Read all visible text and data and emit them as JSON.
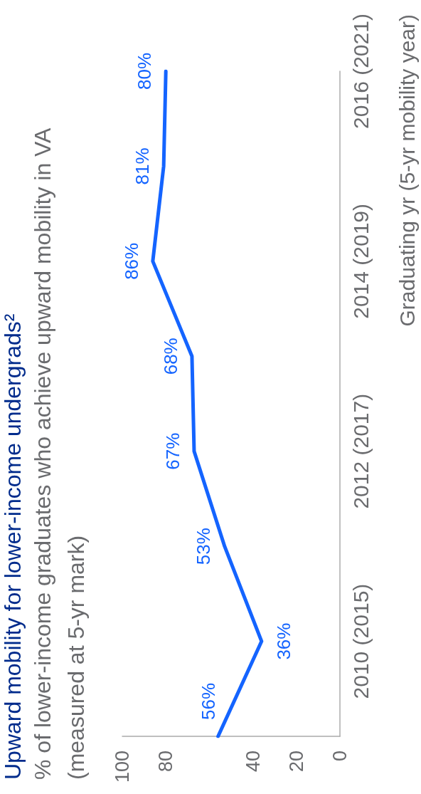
{
  "chart_data": {
    "type": "line",
    "orientation": "horizontal",
    "title": "Upward mobility for lower-income undergrads²",
    "subtitle": "% of lower-income graduates who achieve upward mobility in VA (measured at 5-yr mark)",
    "ylabel": "Graduating yr (5-yr mobility year)",
    "categories": [
      "2016 (2021)",
      null,
      "2014 (2019)",
      null,
      "2012 (2017)",
      null,
      "2010 (2015)",
      null
    ],
    "values": [
      80,
      81,
      86,
      68,
      67,
      53,
      36,
      56
    ],
    "value_labels": [
      "80%",
      "81%",
      "86%",
      "68%",
      "67%",
      "53%",
      "36%",
      "56%"
    ],
    "color": "#1464ff",
    "xlim": [
      100,
      0
    ],
    "xticks": [
      100,
      80,
      40,
      20,
      0
    ],
    "marker": "none"
  }
}
